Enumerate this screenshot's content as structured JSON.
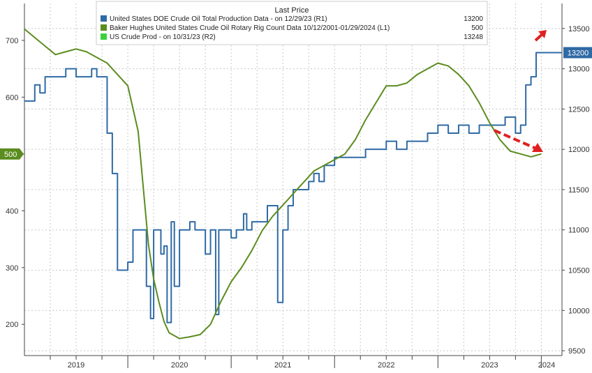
{
  "chart_data": {
    "type": "line",
    "legend": {
      "title": "Last Price",
      "placement": "top-center",
      "entries": [
        {
          "label": "United States DOE Crude Oil Total Production Data -  on 12/29/23  (R1)",
          "value": "13200",
          "color": "#2f6aa5"
        },
        {
          "label": "Baker Hughes United States Crude Oil Rotary Rig Count Data 10/12/2001-01/29/2024   (L1)",
          "value": "500",
          "color": "#5b8c1f"
        },
        {
          "label": "US Crude Prod -  on 10/31/23  (R2)",
          "value": "13248",
          "color": "#3bd13b"
        }
      ]
    },
    "left_axis": {
      "ticks": [
        "200",
        "300",
        "400",
        "500",
        "600",
        "700"
      ],
      "range": [
        145,
        765
      ],
      "last_value_badge": "500",
      "badge_color": "#5b8c1f"
    },
    "right_axis": {
      "ticks": [
        "9500",
        "10000",
        "10500",
        "11000",
        "11500",
        "12000",
        "12500",
        "13000",
        "13500"
      ],
      "range": [
        9440,
        13810
      ],
      "last_value_badge": "13200",
      "badge_color": "#2f6aa5"
    },
    "x_axis": {
      "ticks": [
        "2019",
        "2020",
        "2021",
        "2022",
        "2023",
        "2024"
      ],
      "range": [
        2019.0,
        2024.2
      ]
    },
    "grid": true,
    "annotations": [
      "red dashed arrow indicating rig count decline",
      "red arrow indicating production at record high"
    ],
    "series": [
      {
        "name": "United States DOE Crude Oil Total Production Data",
        "axis": "right",
        "color": "#2f6aa5",
        "x": [
          2019.0,
          2019.05,
          2019.1,
          2019.15,
          2019.2,
          2019.3,
          2019.4,
          2019.5,
          2019.6,
          2019.65,
          2019.7,
          2019.75,
          2019.8,
          2019.85,
          2019.9,
          2020.0,
          2020.05,
          2020.1,
          2020.18,
          2020.22,
          2020.25,
          2020.3,
          2020.32,
          2020.35,
          2020.38,
          2020.42,
          2020.45,
          2020.5,
          2020.55,
          2020.6,
          2020.65,
          2020.7,
          2020.75,
          2020.8,
          2020.85,
          2020.88,
          2020.92,
          2020.95,
          2021.0,
          2021.05,
          2021.1,
          2021.12,
          2021.15,
          2021.2,
          2021.25,
          2021.3,
          2021.35,
          2021.4,
          2021.45,
          2021.5,
          2021.55,
          2021.6,
          2021.65,
          2021.7,
          2021.75,
          2021.8,
          2021.85,
          2021.9,
          2022.0,
          2022.1,
          2022.2,
          2022.3,
          2022.4,
          2022.5,
          2022.6,
          2022.7,
          2022.8,
          2022.9,
          2023.0,
          2023.05,
          2023.1,
          2023.15,
          2023.2,
          2023.3,
          2023.4,
          2023.5,
          2023.6,
          2023.65,
          2023.7,
          2023.75,
          2023.8,
          2023.85,
          2023.9,
          2023.95,
          2024.0,
          2024.1,
          2024.2
        ],
        "values": [
          12600,
          12600,
          12800,
          12700,
          12900,
          12900,
          13000,
          12900,
          12900,
          13000,
          12900,
          12900,
          12200,
          11700,
          10500,
          10600,
          11000,
          11000,
          10300,
          9900,
          11000,
          11000,
          10700,
          10800,
          9850,
          11100,
          10300,
          11000,
          11000,
          11100,
          11000,
          11000,
          10700,
          11000,
          9950,
          11000,
          11000,
          11000,
          10900,
          11000,
          11000,
          11200,
          11000,
          11100,
          11100,
          11100,
          11300,
          11300,
          10100,
          11000,
          11300,
          11500,
          11500,
          11500,
          11600,
          11700,
          11600,
          11800,
          11900,
          11900,
          11900,
          12000,
          12000,
          12100,
          12000,
          12100,
          12100,
          12200,
          12300,
          12300,
          12200,
          12200,
          12300,
          12200,
          12300,
          12300,
          12300,
          12400,
          12400,
          12200,
          12300,
          12800,
          12900,
          13200,
          13200,
          13200,
          13200
        ]
      },
      {
        "name": "Baker Hughes United States Crude Oil Rotary Rig Count Data",
        "axis": "left",
        "color": "#5b8c1f",
        "x": [
          2019.0,
          2019.1,
          2019.2,
          2019.3,
          2019.4,
          2019.5,
          2019.6,
          2019.7,
          2019.8,
          2019.9,
          2020.0,
          2020.1,
          2020.2,
          2020.25,
          2020.3,
          2020.35,
          2020.4,
          2020.5,
          2020.6,
          2020.7,
          2020.8,
          2020.9,
          2021.0,
          2021.1,
          2021.2,
          2021.3,
          2021.4,
          2021.5,
          2021.6,
          2021.7,
          2021.8,
          2021.9,
          2022.0,
          2022.1,
          2022.2,
          2022.3,
          2022.4,
          2022.5,
          2022.6,
          2022.7,
          2022.8,
          2022.9,
          2023.0,
          2023.1,
          2023.2,
          2023.3,
          2023.4,
          2023.5,
          2023.6,
          2023.7,
          2023.8,
          2023.9,
          2024.0
        ],
        "values": [
          720,
          705,
          690,
          675,
          680,
          685,
          680,
          670,
          660,
          640,
          620,
          540,
          340,
          280,
          240,
          205,
          185,
          175,
          178,
          182,
          200,
          240,
          275,
          300,
          330,
          365,
          390,
          410,
          430,
          450,
          470,
          480,
          490,
          500,
          525,
          560,
          590,
          620,
          620,
          625,
          640,
          650,
          660,
          655,
          640,
          620,
          590,
          555,
          525,
          505,
          500,
          495,
          500
        ]
      },
      {
        "name": "US Crude Prod",
        "axis": "right",
        "color": "#3bd13b",
        "x": [
          2023.78
        ],
        "values": [
          13248
        ]
      }
    ]
  }
}
